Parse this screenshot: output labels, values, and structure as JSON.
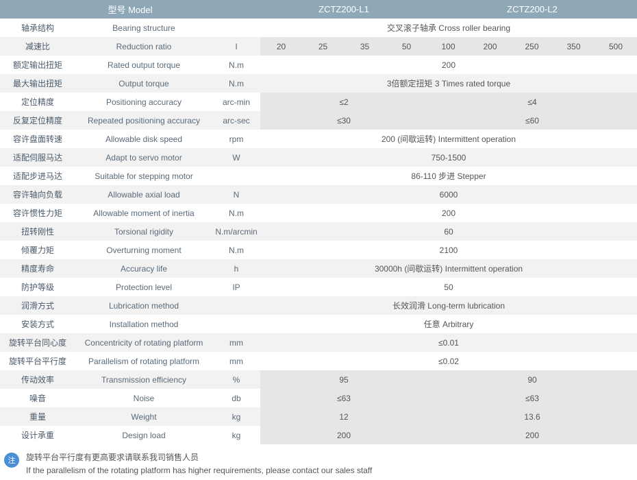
{
  "colors": {
    "header_bg": "#8fa8b8",
    "header_fg": "#ffffff",
    "row_even_bg": "#f2f2f2",
    "row_odd_bg": "#ffffff",
    "subcell_bg": "#e6e6e6",
    "text": "#555555",
    "note_badge_bg": "#4a8fd6"
  },
  "header": {
    "model_label": "型号 Model",
    "model1": "ZCTZ200-L1",
    "model2": "ZCTZ200-L2"
  },
  "ratio_row": {
    "zh": "减速比",
    "en": "Reduction ratio",
    "unit": "I",
    "vals_l1": [
      "20",
      "25",
      "35",
      "50"
    ],
    "vals_l2": [
      "100",
      "200",
      "250",
      "350",
      "500"
    ]
  },
  "rows": [
    {
      "zh": "轴承结构",
      "en": "Bearing structure",
      "unit": "",
      "span": "full",
      "val": "交叉滚子轴承 Cross roller bearing",
      "bg": "odd"
    },
    {
      "type": "ratio",
      "bg": "even"
    },
    {
      "zh": "额定输出扭矩",
      "en": "Rated output torque",
      "unit": "N.m",
      "span": "full",
      "val": "200",
      "bg": "odd"
    },
    {
      "zh": "最大输出扭矩",
      "en": "Output torque",
      "unit": "N.m",
      "span": "full",
      "val": "3倍额定扭矩 3 Times rated torque",
      "bg": "even"
    },
    {
      "zh": "定位精度",
      "en": "Positioning accuracy",
      "unit": "arc-min",
      "span": "split",
      "val1": "≤2",
      "val2": "≤4",
      "bg": "odd",
      "sub": true
    },
    {
      "zh": "反复定位精度",
      "en": "Repeated positioning accuracy",
      "unit": "arc-sec",
      "span": "split",
      "val1": "≤30",
      "val2": "≤60",
      "bg": "even",
      "sub": true
    },
    {
      "zh": "容许盘面转速",
      "en": "Allowable disk speed",
      "unit": "rpm",
      "span": "full",
      "val": "200 (间歇运转) Intermittent operation",
      "bg": "odd"
    },
    {
      "zh": "适配伺服马达",
      "en": "Adapt to servo motor",
      "unit": "W",
      "span": "full",
      "val": "750-1500",
      "bg": "even"
    },
    {
      "zh": "适配步进马达",
      "en": "Suitable for stepping motor",
      "unit": "",
      "span": "full",
      "val": "86-110 步进 Stepper",
      "bg": "odd"
    },
    {
      "zh": "容许轴向负载",
      "en": "Allowable axial load",
      "unit": "N",
      "span": "full",
      "val": "6000",
      "bg": "even"
    },
    {
      "zh": "容许惯性力矩",
      "en": "Allowable moment of inertia",
      "unit": "N.m",
      "span": "full",
      "val": "200",
      "bg": "odd"
    },
    {
      "zh": "扭转刚性",
      "en": "Torsional rigidity",
      "unit": "N.m/arcmin",
      "span": "full",
      "val": "60",
      "bg": "even"
    },
    {
      "zh": "倾覆力矩",
      "en": "Overturning moment",
      "unit": "N.m",
      "span": "full",
      "val": "2100",
      "bg": "odd"
    },
    {
      "zh": "精度寿命",
      "en": "Accuracy life",
      "unit": "h",
      "span": "full",
      "val": "30000h (间歇运转) Intermittent operation",
      "bg": "even"
    },
    {
      "zh": "防护等级",
      "en": "Protection level",
      "unit": "IP",
      "span": "full",
      "val": "50",
      "bg": "odd"
    },
    {
      "zh": "润滑方式",
      "en": "Lubrication method",
      "unit": "",
      "span": "full",
      "val": "长效润滑 Long-term lubrication",
      "bg": "even"
    },
    {
      "zh": "安装方式",
      "en": "Installation method",
      "unit": "",
      "span": "full",
      "val": "任意 Arbitrary",
      "bg": "odd"
    },
    {
      "zh": "旋转平台同心度",
      "en": "Concentricity of rotating platform",
      "unit": "mm",
      "span": "full",
      "val": "≤0.01",
      "bg": "even"
    },
    {
      "zh": "旋转平台平行度",
      "en": "Parallelism of rotating platform",
      "unit": "mm",
      "span": "full",
      "val": "≤0.02",
      "bg": "odd"
    },
    {
      "zh": "传动效率",
      "en": "Transmission efficiency",
      "unit": "%",
      "span": "split",
      "val1": "95",
      "val2": "90",
      "bg": "even",
      "sub": true
    },
    {
      "zh": "噪音",
      "en": "Noise",
      "unit": "db",
      "span": "split",
      "val1": "≤63",
      "val2": "≤63",
      "bg": "odd",
      "sub": true
    },
    {
      "zh": "重量",
      "en": "Weight",
      "unit": "kg",
      "span": "split",
      "val1": "12",
      "val2": "13.6",
      "bg": "even",
      "sub": true
    },
    {
      "zh": "设计承重",
      "en": "Design load",
      "unit": "kg",
      "span": "split",
      "val1": "200",
      "val2": "200",
      "bg": "odd",
      "sub": true
    }
  ],
  "note": {
    "badge": "注",
    "line1": "旋转平台平行度有更高要求请联系我司销售人员",
    "line2": "If the parallelism of the rotating platform has higher requirements, please contact our sales staff"
  }
}
